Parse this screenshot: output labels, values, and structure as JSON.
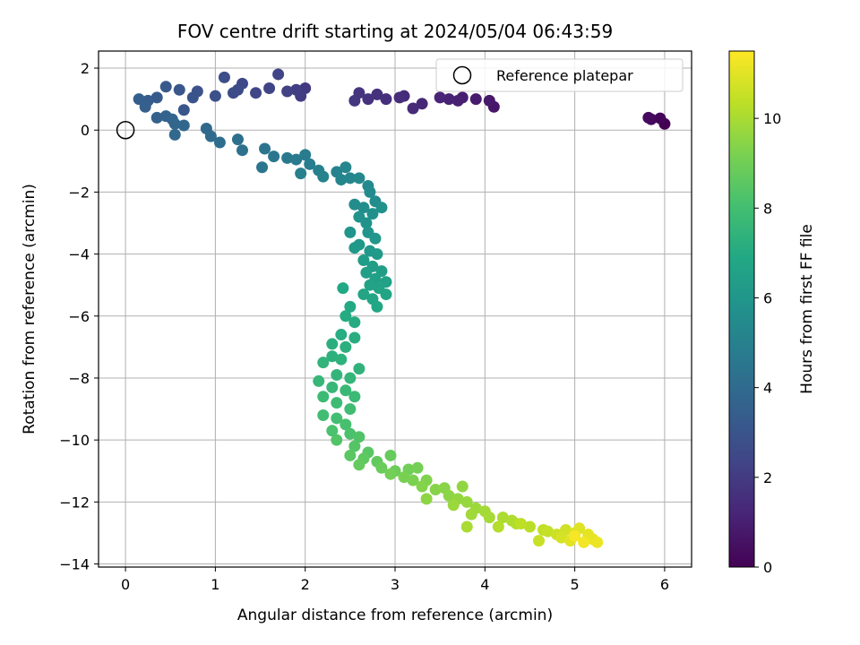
{
  "chart_data": {
    "type": "scatter",
    "title": "FOV centre drift starting at 2024/05/04 06:43:59",
    "xlabel": "Angular distance from reference (arcmin)",
    "ylabel": "Rotation from reference (arcmin)",
    "xlim": [
      -0.3,
      6.3
    ],
    "ylim": [
      -14.1,
      2.55
    ],
    "xticks": [
      0,
      1,
      2,
      3,
      4,
      5,
      6
    ],
    "yticks": [
      2,
      0,
      -2,
      -4,
      -6,
      -8,
      -10,
      -12,
      -14
    ],
    "grid": true,
    "legend": {
      "position": "top-right",
      "label": "Reference platepar"
    },
    "reference_point": {
      "x": 0,
      "y": 0
    },
    "colorbar": {
      "label": "Hours from first FF file",
      "range": [
        0,
        11.5
      ],
      "ticks": [
        0,
        2,
        4,
        6,
        8,
        10
      ],
      "colormap": "viridis"
    },
    "points": [
      [
        6.0,
        0.2,
        0.0
      ],
      [
        5.95,
        0.38,
        0.1
      ],
      [
        5.85,
        0.35,
        0.2
      ],
      [
        5.82,
        0.4,
        0.3
      ],
      [
        4.1,
        0.75,
        0.7
      ],
      [
        4.05,
        0.95,
        0.8
      ],
      [
        3.9,
        1.0,
        0.9
      ],
      [
        3.75,
        1.05,
        1.0
      ],
      [
        3.7,
        0.95,
        1.05
      ],
      [
        3.6,
        1.0,
        1.1
      ],
      [
        3.5,
        1.05,
        1.2
      ],
      [
        3.3,
        0.85,
        1.3
      ],
      [
        3.2,
        0.7,
        1.35
      ],
      [
        3.1,
        1.1,
        1.4
      ],
      [
        3.05,
        1.05,
        1.5
      ],
      [
        2.9,
        1.0,
        1.55
      ],
      [
        2.8,
        1.15,
        1.6
      ],
      [
        2.7,
        1.0,
        1.7
      ],
      [
        2.6,
        1.2,
        1.75
      ],
      [
        2.55,
        0.95,
        1.8
      ],
      [
        2.0,
        1.35,
        1.9
      ],
      [
        1.95,
        1.1,
        2.0
      ],
      [
        1.9,
        1.3,
        2.1
      ],
      [
        1.8,
        1.25,
        2.2
      ],
      [
        1.7,
        1.8,
        2.3
      ],
      [
        1.6,
        1.35,
        2.35
      ],
      [
        1.45,
        1.2,
        2.4
      ],
      [
        1.3,
        1.5,
        2.5
      ],
      [
        1.25,
        1.3,
        2.6
      ],
      [
        1.2,
        1.2,
        2.65
      ],
      [
        1.1,
        1.7,
        2.7
      ],
      [
        1.0,
        1.1,
        2.8
      ],
      [
        0.8,
        1.25,
        2.9
      ],
      [
        0.75,
        1.05,
        3.0
      ],
      [
        0.65,
        0.65,
        3.05
      ],
      [
        0.6,
        1.3,
        3.1
      ],
      [
        0.45,
        1.4,
        3.2
      ],
      [
        0.35,
        1.05,
        3.25
      ],
      [
        0.25,
        0.95,
        3.3
      ],
      [
        0.15,
        1.0,
        3.4
      ],
      [
        0.22,
        0.75,
        3.5
      ],
      [
        0.35,
        0.4,
        3.6
      ],
      [
        0.45,
        0.45,
        3.65
      ],
      [
        0.52,
        0.35,
        3.7
      ],
      [
        0.55,
        0.2,
        3.75
      ],
      [
        0.65,
        0.15,
        3.8
      ],
      [
        0.55,
        -0.15,
        3.85
      ],
      [
        0.9,
        0.05,
        3.9
      ],
      [
        0.95,
        -0.2,
        4.0
      ],
      [
        1.05,
        -0.4,
        4.1
      ],
      [
        1.25,
        -0.3,
        4.2
      ],
      [
        1.3,
        -0.65,
        4.3
      ],
      [
        1.55,
        -0.6,
        4.4
      ],
      [
        1.52,
        -1.2,
        4.45
      ],
      [
        1.65,
        -0.85,
        4.5
      ],
      [
        1.8,
        -0.9,
        4.6
      ],
      [
        1.9,
        -0.95,
        4.7
      ],
      [
        2.0,
        -0.8,
        4.8
      ],
      [
        2.05,
        -1.1,
        4.85
      ],
      [
        1.95,
        -1.4,
        4.9
      ],
      [
        2.15,
        -1.3,
        5.0
      ],
      [
        2.2,
        -1.5,
        5.05
      ],
      [
        2.35,
        -1.35,
        5.1
      ],
      [
        2.4,
        -1.6,
        5.2
      ],
      [
        2.45,
        -1.2,
        5.25
      ],
      [
        2.5,
        -1.55,
        5.3
      ],
      [
        2.6,
        -1.55,
        5.35
      ],
      [
        2.7,
        -1.8,
        5.4
      ],
      [
        2.72,
        -2.0,
        5.45
      ],
      [
        2.78,
        -2.3,
        5.5
      ],
      [
        2.55,
        -2.4,
        5.55
      ],
      [
        2.65,
        -2.5,
        5.6
      ],
      [
        2.75,
        -2.7,
        5.7
      ],
      [
        2.85,
        -2.5,
        5.75
      ],
      [
        2.6,
        -2.8,
        5.8
      ],
      [
        2.68,
        -3.0,
        5.85
      ],
      [
        2.5,
        -3.3,
        5.9
      ],
      [
        2.7,
        -3.3,
        5.95
      ],
      [
        2.78,
        -3.5,
        6.0
      ],
      [
        2.6,
        -3.7,
        6.05
      ],
      [
        2.72,
        -3.9,
        6.1
      ],
      [
        2.55,
        -3.8,
        6.15
      ],
      [
        2.8,
        -4.0,
        6.2
      ],
      [
        2.65,
        -4.2,
        6.3
      ],
      [
        2.75,
        -4.4,
        6.35
      ],
      [
        2.85,
        -4.55,
        6.4
      ],
      [
        2.68,
        -4.6,
        6.45
      ],
      [
        2.78,
        -4.8,
        6.5
      ],
      [
        2.9,
        -4.9,
        6.55
      ],
      [
        2.72,
        -5.0,
        6.6
      ],
      [
        2.82,
        -5.1,
        6.65
      ],
      [
        2.65,
        -5.3,
        6.7
      ],
      [
        2.9,
        -5.3,
        6.75
      ],
      [
        2.75,
        -5.45,
        6.8
      ],
      [
        2.8,
        -5.7,
        6.85
      ],
      [
        2.42,
        -5.1,
        6.9
      ],
      [
        2.5,
        -5.7,
        6.95
      ],
      [
        2.45,
        -6.0,
        7.0
      ],
      [
        2.55,
        -6.2,
        7.05
      ],
      [
        2.4,
        -6.6,
        7.1
      ],
      [
        2.55,
        -6.7,
        7.15
      ],
      [
        2.3,
        -6.9,
        7.2
      ],
      [
        2.45,
        -7.0,
        7.25
      ],
      [
        2.3,
        -7.3,
        7.3
      ],
      [
        2.4,
        -7.4,
        7.35
      ],
      [
        2.6,
        -7.7,
        7.4
      ],
      [
        2.2,
        -7.5,
        7.45
      ],
      [
        2.35,
        -7.9,
        7.5
      ],
      [
        2.5,
        -8.0,
        7.55
      ],
      [
        2.15,
        -8.1,
        7.6
      ],
      [
        2.3,
        -8.3,
        7.65
      ],
      [
        2.45,
        -8.4,
        7.7
      ],
      [
        2.55,
        -8.6,
        7.75
      ],
      [
        2.2,
        -8.6,
        7.8
      ],
      [
        2.35,
        -8.8,
        7.85
      ],
      [
        2.5,
        -9.0,
        7.9
      ],
      [
        2.2,
        -9.2,
        7.95
      ],
      [
        2.35,
        -9.3,
        8.0
      ],
      [
        2.45,
        -9.5,
        8.1
      ],
      [
        2.3,
        -9.7,
        8.15
      ],
      [
        2.5,
        -9.8,
        8.2
      ],
      [
        2.6,
        -9.9,
        8.3
      ],
      [
        2.35,
        -10.0,
        8.35
      ],
      [
        2.55,
        -10.2,
        8.4
      ],
      [
        2.7,
        -10.4,
        8.5
      ],
      [
        2.5,
        -10.5,
        8.55
      ],
      [
        2.65,
        -10.6,
        8.6
      ],
      [
        2.8,
        -10.7,
        8.7
      ],
      [
        2.6,
        -10.8,
        8.75
      ],
      [
        2.95,
        -10.5,
        8.8
      ],
      [
        2.85,
        -10.9,
        8.85
      ],
      [
        3.0,
        -11.0,
        8.9
      ],
      [
        3.15,
        -10.95,
        9.0
      ],
      [
        2.95,
        -11.1,
        9.05
      ],
      [
        3.25,
        -10.9,
        9.1
      ],
      [
        3.1,
        -11.2,
        9.15
      ],
      [
        3.2,
        -11.3,
        9.2
      ],
      [
        3.35,
        -11.3,
        9.3
      ],
      [
        3.3,
        -11.5,
        9.35
      ],
      [
        3.45,
        -11.6,
        9.4
      ],
      [
        3.55,
        -11.55,
        9.45
      ],
      [
        3.6,
        -11.8,
        9.5
      ],
      [
        3.35,
        -11.9,
        9.55
      ],
      [
        3.75,
        -11.5,
        9.6
      ],
      [
        3.7,
        -11.9,
        9.65
      ],
      [
        3.8,
        -12.0,
        9.7
      ],
      [
        3.65,
        -12.1,
        9.75
      ],
      [
        3.9,
        -12.2,
        9.8
      ],
      [
        3.85,
        -12.4,
        9.85
      ],
      [
        4.0,
        -12.3,
        9.9
      ],
      [
        4.05,
        -12.5,
        9.95
      ],
      [
        3.8,
        -12.8,
        10.0
      ],
      [
        4.2,
        -12.5,
        10.05
      ],
      [
        4.3,
        -12.6,
        10.1
      ],
      [
        4.35,
        -12.7,
        10.15
      ],
      [
        4.15,
        -12.8,
        10.2
      ],
      [
        4.5,
        -12.8,
        10.3
      ],
      [
        4.4,
        -12.7,
        10.35
      ],
      [
        4.65,
        -12.9,
        10.4
      ],
      [
        4.7,
        -12.95,
        10.5
      ],
      [
        4.6,
        -13.25,
        10.55
      ],
      [
        4.8,
        -13.05,
        10.6
      ],
      [
        4.9,
        -12.9,
        10.7
      ],
      [
        4.85,
        -13.15,
        10.8
      ],
      [
        5.0,
        -13.0,
        10.9
      ],
      [
        5.05,
        -12.85,
        10.95
      ],
      [
        4.95,
        -13.25,
        11.0
      ],
      [
        5.15,
        -13.05,
        11.05
      ],
      [
        5.2,
        -13.2,
        11.1
      ],
      [
        5.25,
        -13.3,
        11.2
      ],
      [
        5.1,
        -13.3,
        11.3
      ],
      [
        5.0,
        -13.1,
        11.4
      ]
    ]
  }
}
